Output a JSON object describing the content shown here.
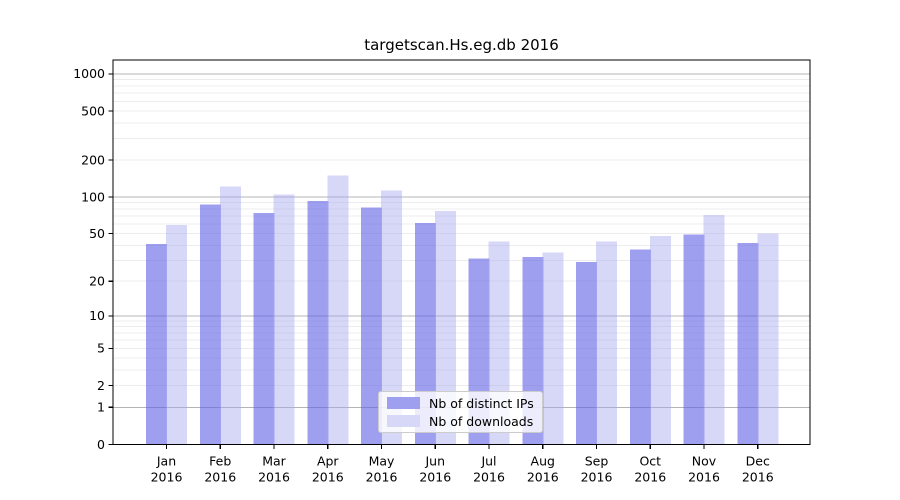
{
  "chart_data": {
    "type": "bar",
    "title": "targetscan.Hs.eg.db 2016",
    "categories": [
      "Jan",
      "Feb",
      "Mar",
      "Apr",
      "May",
      "Jun",
      "Jul",
      "Aug",
      "Sep",
      "Oct",
      "Nov",
      "Dec"
    ],
    "x_tick_year": "2016",
    "series": [
      {
        "name": "Nb of distinct IPs",
        "values": [
          41,
          87,
          74,
          93,
          82,
          61,
          31,
          32,
          29,
          37,
          49,
          42
        ],
        "fill": "rgba(100,100,230,0.62)",
        "legend_color": "#9f9ff0"
      },
      {
        "name": "Nb of downloads",
        "values": [
          59,
          122,
          105,
          150,
          113,
          77,
          43,
          35,
          43,
          48,
          71,
          50
        ],
        "fill": "rgba(168,168,240,0.46)",
        "legend_color": "#d7d7f8"
      }
    ],
    "y_ticks": [
      1000,
      500,
      200,
      100,
      50,
      20,
      10,
      5,
      2,
      1,
      0
    ],
    "y_scale": "log10(value+1)",
    "ylim": [
      0,
      1300
    ],
    "grid": {
      "major_lines": [
        1,
        10,
        100,
        1000
      ],
      "minor_lines": "2-9 of each decade",
      "major_color": "#b4b4b4",
      "minor_color": "#ececec"
    },
    "legend_position": "inside-bottom-center",
    "frame_color": "#000000",
    "background_color": "#ffffff"
  }
}
